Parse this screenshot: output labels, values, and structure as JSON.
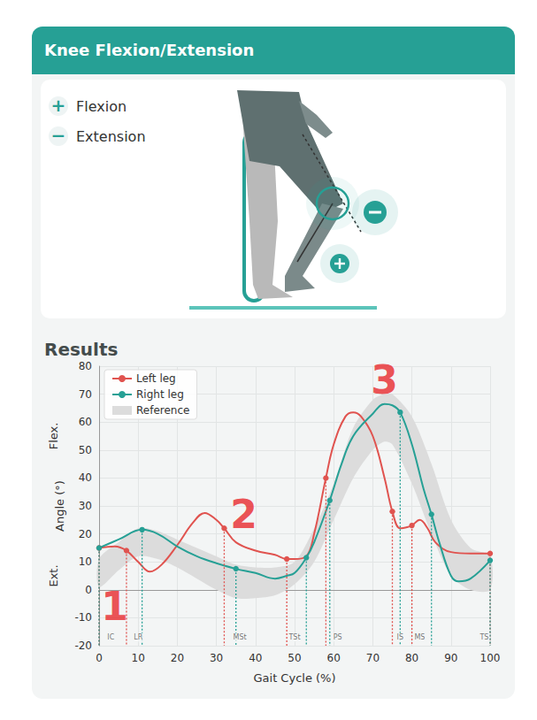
{
  "header": {
    "title": "Knee Flexion/Extension"
  },
  "illustration": {
    "legend": [
      {
        "sign": "+",
        "label": "Flexion"
      },
      {
        "sign": "−",
        "label": "Extension"
      }
    ]
  },
  "results": {
    "title": "Results"
  },
  "chart_data": {
    "type": "line",
    "x_label": "Gait Cycle (%)",
    "y_label": "Angle (°)",
    "y_regions": [
      {
        "label": "Flex.",
        "y": 55
      },
      {
        "label": "Ext.",
        "y": 5
      }
    ],
    "xlim": [
      0,
      100
    ],
    "xticks": [
      0,
      10,
      20,
      30,
      40,
      50,
      60,
      70,
      80,
      90,
      100
    ],
    "ylim": [
      -20,
      80
    ],
    "yticks": [
      -20,
      -10,
      0,
      10,
      20,
      30,
      40,
      50,
      60,
      70,
      80
    ],
    "grid": true,
    "legend": "upper left",
    "series": [
      {
        "name": "Left leg",
        "color": "#e0534f",
        "x": [
          0,
          4,
          7,
          10,
          13,
          16,
          20,
          24,
          27,
          30,
          32,
          35,
          40,
          45,
          48,
          50,
          53,
          55,
          58,
          60,
          63,
          65,
          67,
          70,
          73,
          75,
          77,
          79,
          80,
          82,
          84,
          86,
          90,
          95,
          100
        ],
        "values": [
          15,
          15.5,
          14,
          10,
          6.5,
          9,
          16,
          24,
          27.5,
          25,
          22,
          17,
          14,
          12.5,
          11,
          11,
          12,
          20,
          40,
          52,
          62,
          63.5,
          62,
          55,
          40,
          28,
          22,
          22.5,
          23,
          25,
          22,
          17,
          13.5,
          13,
          13
        ],
        "event_x": [
          0,
          7,
          32,
          48,
          58,
          75,
          80,
          100
        ],
        "event_y": [
          15,
          14,
          22,
          11,
          40,
          28,
          23,
          13
        ]
      },
      {
        "name": "Right leg",
        "color": "#26a095",
        "x": [
          0,
          5,
          11,
          15,
          20,
          25,
          30,
          35,
          40,
          45,
          48,
          50,
          53,
          55,
          59,
          62,
          65,
          70,
          73,
          75,
          77,
          80,
          83,
          85,
          87,
          90,
          92,
          95,
          100
        ],
        "values": [
          15,
          18,
          21.5,
          20,
          15.5,
          12,
          9.5,
          7.5,
          6,
          4,
          5,
          6,
          11.5,
          17,
          32,
          45,
          55,
          63,
          66.5,
          66,
          63.5,
          52,
          36,
          27,
          17,
          5,
          3,
          4,
          10.5
        ],
        "event_x": [
          0,
          11,
          35,
          53,
          59,
          77,
          85,
          100
        ],
        "event_y": [
          15,
          21.5,
          7.5,
          11.5,
          32,
          63.5,
          27,
          10.5
        ]
      }
    ],
    "reference": {
      "name": "Reference",
      "color": "#dcdcdc",
      "x": [
        0,
        5,
        10,
        15,
        20,
        25,
        30,
        35,
        40,
        45,
        50,
        55,
        60,
        65,
        70,
        73,
        75,
        80,
        85,
        90,
        95,
        100
      ],
      "lower": [
        1,
        7,
        12,
        11,
        8,
        4,
        0,
        -3,
        -3,
        -2,
        2,
        10,
        25,
        40,
        50,
        53,
        52,
        38,
        20,
        5,
        0,
        0
      ],
      "upper": [
        11,
        17,
        22,
        21,
        18,
        15,
        12,
        9,
        8,
        8,
        10,
        22,
        38,
        58,
        68,
        70,
        70,
        62,
        45,
        25,
        15,
        12
      ]
    },
    "phases": [
      {
        "label": "IC",
        "x": 3,
        "y": -17
      },
      {
        "label": "LR",
        "x": 10,
        "y": -17
      },
      {
        "label": "MSt",
        "x": 36,
        "y": -17
      },
      {
        "label": "TSt",
        "x": 50,
        "y": -17
      },
      {
        "label": "PS",
        "x": 61,
        "y": -17
      },
      {
        "label": "IS",
        "x": 77,
        "y": -17
      },
      {
        "label": "MS",
        "x": 82,
        "y": -17
      },
      {
        "label": "TS",
        "x": 98.5,
        "y": -17
      }
    ],
    "annotations": [
      {
        "text": "1",
        "x": 4,
        "y": -6,
        "color": "#e8262a"
      },
      {
        "text": "2",
        "x": 37,
        "y": 27,
        "color": "#e8262a"
      },
      {
        "text": "3",
        "x": 73,
        "y": 75,
        "color": "#e8262a"
      }
    ]
  }
}
